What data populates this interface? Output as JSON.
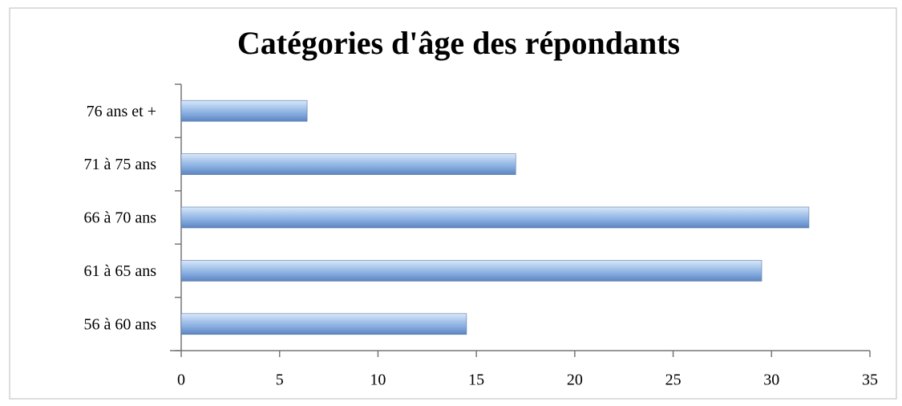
{
  "chart_data": {
    "type": "bar",
    "orientation": "horizontal",
    "title": "Catégories d'âge des répondants",
    "categories": [
      "76 ans et +",
      "71 à 75 ans",
      "66 à 70 ans",
      "61 à 65 ans",
      "56 à 60 ans"
    ],
    "values": [
      6.4,
      17.0,
      31.9,
      29.5,
      14.5
    ],
    "color": "#8db3e2",
    "xlim": [
      0,
      35
    ],
    "xticks": [
      0,
      5,
      10,
      15,
      20,
      25,
      30,
      35
    ],
    "grid": false
  }
}
